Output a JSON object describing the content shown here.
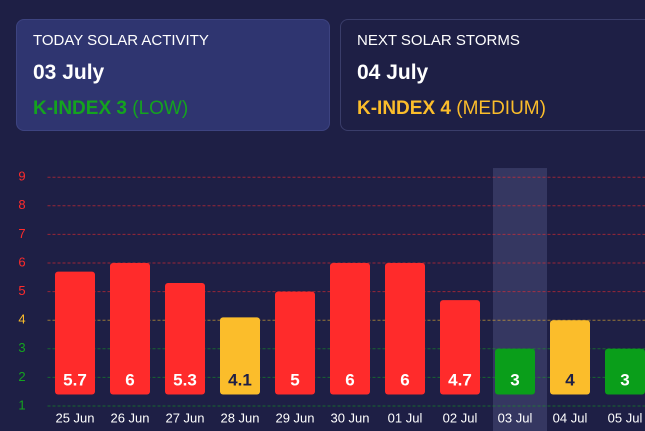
{
  "cards": [
    {
      "label": "TODAY SOLAR ACTIVITY",
      "date": "03 July",
      "kindex": "K-INDEX 3",
      "level": "(LOW)",
      "color": "#14a31f"
    },
    {
      "label": "NEXT SOLAR STORMS",
      "date": "04 July",
      "kindex": "K-INDEX 4",
      "level": "(MEDIUM)",
      "color": "#fbbd2b"
    }
  ],
  "chart_data": {
    "type": "bar",
    "categories": [
      "25 Jun",
      "26 Jun",
      "27 Jun",
      "28 Jun",
      "29 Jun",
      "30 Jun",
      "01 Jul",
      "02 Jul",
      "03 Jul",
      "04 Jul",
      "05 Jul"
    ],
    "values": [
      5.7,
      6,
      5.3,
      4.1,
      5,
      6,
      6,
      4.7,
      3,
      4,
      3
    ],
    "colors": [
      "#ff2b2b",
      "#ff2b2b",
      "#ff2b2b",
      "#fbbd2b",
      "#ff2b2b",
      "#ff2b2b",
      "#ff2b2b",
      "#ff2b2b",
      "#0a9e1a",
      "#fbbd2b",
      "#0a9e1a"
    ],
    "label_colors": [
      "#ffffff",
      "#ffffff",
      "#ffffff",
      "#1e1f45",
      "#ffffff",
      "#ffffff",
      "#ffffff",
      "#ffffff",
      "#ffffff",
      "#1e1f45",
      "#ffffff"
    ],
    "highlight_index": 8,
    "ylim": [
      1.4,
      9.6
    ],
    "yticks": [
      1,
      2,
      3,
      4,
      5,
      6,
      7,
      8,
      9
    ],
    "ytick_colors": [
      "#14a31f",
      "#14a31f",
      "#14a31f",
      "#fbbd2b",
      "#ff2b2b",
      "#ff2b2b",
      "#ff2b2b",
      "#ff2b2b",
      "#ff2b2b"
    ],
    "grid": true
  }
}
